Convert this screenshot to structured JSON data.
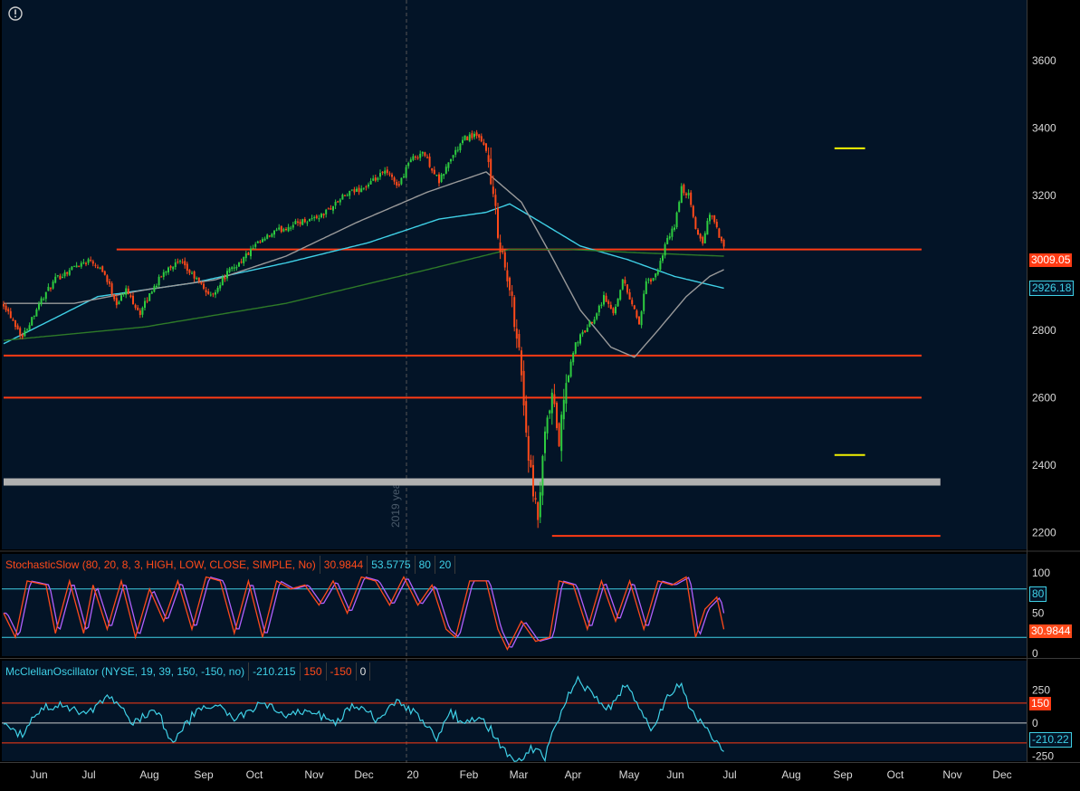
{
  "colors": {
    "background": "#031427",
    "grid_line": "#3a3a3a",
    "axis_text": "#d8d8d8",
    "price_up": "#2ecc40",
    "price_down": "#ff4a1a",
    "support_line": "#ff3b14",
    "ma_cyan": "#3fd0e6",
    "ma_gray": "#9a9a9a",
    "ma_green": "#2e7a28",
    "target_yellow": "#f2f200",
    "band_gray": "#b0b0b0"
  },
  "icons": {
    "info": "info-circle-icon"
  },
  "chart_data": [
    {
      "type": "candlestick",
      "panel": "price",
      "ylim": [
        2150,
        3780
      ],
      "y_ticks": [
        2200,
        2400,
        2600,
        2800,
        3000,
        3200,
        3400,
        3600
      ],
      "x_labels": [
        "Jun",
        "Jul",
        "Aug",
        "Sep",
        "Oct",
        "Nov",
        "Dec",
        "20",
        "Feb",
        "Mar",
        "Apr",
        "May",
        "Jun",
        "Jul",
        "Aug",
        "Sep",
        "Oct",
        "Nov",
        "Dec"
      ],
      "separator_label": "2019 year",
      "price_tags": [
        {
          "value": 3009.05,
          "label": "3009.05",
          "color": "#ff3b14"
        },
        {
          "value": 2926.18,
          "label": "2926.18",
          "color": "#3fd0e6"
        }
      ],
      "closes_anchor_points": [
        [
          0,
          2880
        ],
        [
          8,
          2780
        ],
        [
          15,
          2880
        ],
        [
          22,
          2950
        ],
        [
          30,
          2990
        ],
        [
          37,
          3010
        ],
        [
          42,
          2980
        ],
        [
          48,
          2880
        ],
        [
          52,
          2920
        ],
        [
          58,
          2850
        ],
        [
          63,
          2920
        ],
        [
          70,
          2990
        ],
        [
          75,
          3000
        ],
        [
          82,
          2950
        ],
        [
          88,
          2900
        ],
        [
          95,
          2970
        ],
        [
          100,
          3000
        ],
        [
          107,
          3050
        ],
        [
          115,
          3090
        ],
        [
          125,
          3120
        ],
        [
          135,
          3140
        ],
        [
          145,
          3200
        ],
        [
          155,
          3230
        ],
        [
          162,
          3270
        ],
        [
          168,
          3230
        ],
        [
          172,
          3300
        ],
        [
          178,
          3330
        ],
        [
          182,
          3280
        ],
        [
          185,
          3240
        ],
        [
          190,
          3310
        ],
        [
          196,
          3370
        ],
        [
          200,
          3380
        ],
        [
          205,
          3340
        ],
        [
          207,
          3230
        ],
        [
          210,
          3100
        ],
        [
          213,
          2980
        ],
        [
          216,
          2880
        ],
        [
          219,
          2750
        ],
        [
          222,
          2500
        ],
        [
          225,
          2300
        ],
        [
          227,
          2240
        ],
        [
          230,
          2480
        ],
        [
          233,
          2600
        ],
        [
          236,
          2470
        ],
        [
          239,
          2640
        ],
        [
          243,
          2760
        ],
        [
          247,
          2800
        ],
        [
          251,
          2840
        ],
        [
          255,
          2900
        ],
        [
          259,
          2850
        ],
        [
          263,
          2950
        ],
        [
          267,
          2880
        ],
        [
          270,
          2820
        ],
        [
          273,
          2940
        ],
        [
          277,
          2960
        ],
        [
          281,
          3050
        ],
        [
          285,
          3110
        ],
        [
          288,
          3220
        ],
        [
          291,
          3200
        ],
        [
          294,
          3100
        ],
        [
          297,
          3060
        ],
        [
          300,
          3150
        ],
        [
          303,
          3100
        ],
        [
          306,
          3040
        ]
      ],
      "moving_averages": [
        {
          "name": "cyan",
          "anchor_points": [
            [
              0,
              2760
            ],
            [
              40,
              2900
            ],
            [
              80,
              2940
            ],
            [
              120,
              3000
            ],
            [
              155,
              3060
            ],
            [
              185,
              3130
            ],
            [
              205,
              3150
            ],
            [
              215,
              3175
            ],
            [
              226,
              3130
            ],
            [
              245,
              3050
            ],
            [
              265,
              3010
            ],
            [
              285,
              2960
            ],
            [
              306,
              2925
            ]
          ]
        },
        {
          "name": "gray",
          "anchor_points": [
            [
              0,
              2880
            ],
            [
              30,
              2880
            ],
            [
              60,
              2920
            ],
            [
              90,
              2950
            ],
            [
              120,
              3020
            ],
            [
              150,
              3120
            ],
            [
              180,
              3210
            ],
            [
              205,
              3270
            ],
            [
              220,
              3180
            ],
            [
              232,
              3030
            ],
            [
              245,
              2860
            ],
            [
              258,
              2750
            ],
            [
              268,
              2720
            ],
            [
              278,
              2800
            ],
            [
              290,
              2900
            ],
            [
              300,
              2960
            ],
            [
              306,
              2980
            ]
          ]
        },
        {
          "name": "green",
          "anchor_points": [
            [
              0,
              2770
            ],
            [
              60,
              2810
            ],
            [
              120,
              2880
            ],
            [
              180,
              2980
            ],
            [
              215,
              3040
            ],
            [
              240,
              3040
            ],
            [
              270,
              3030
            ],
            [
              306,
              3020
            ]
          ]
        }
      ],
      "horizontal_levels": [
        {
          "value": 3040,
          "from_day": 48,
          "to_day": 390,
          "color": "#ff3b14"
        },
        {
          "value": 2725,
          "from_day": 0,
          "to_day": 390,
          "color": "#ff3b14"
        },
        {
          "value": 2600,
          "from_day": 0,
          "to_day": 390,
          "color": "#ff3b14"
        },
        {
          "value": 2190,
          "from_day": 233,
          "to_day": 398,
          "color": "#ff3b14"
        },
        {
          "value": 2350,
          "from_day": 0,
          "to_day": 398,
          "color": "#b0b0b0",
          "band": true
        },
        {
          "value": 3340,
          "from_day": 353,
          "to_day": 366,
          "color": "#f2f200"
        },
        {
          "value": 2430,
          "from_day": 353,
          "to_day": 366,
          "color": "#f2f200"
        }
      ]
    },
    {
      "type": "line",
      "panel": "stochastic",
      "ylim": [
        0,
        100
      ],
      "y_ticks": [
        0,
        50,
        100
      ],
      "levels": [
        80,
        20
      ],
      "anchor_points": [
        [
          0,
          50
        ],
        [
          5,
          20
        ],
        [
          10,
          90
        ],
        [
          18,
          85
        ],
        [
          22,
          25
        ],
        [
          28,
          90
        ],
        [
          34,
          25
        ],
        [
          38,
          85
        ],
        [
          44,
          30
        ],
        [
          50,
          90
        ],
        [
          56,
          20
        ],
        [
          62,
          80
        ],
        [
          68,
          40
        ],
        [
          74,
          90
        ],
        [
          80,
          30
        ],
        [
          86,
          95
        ],
        [
          92,
          90
        ],
        [
          98,
          25
        ],
        [
          104,
          90
        ],
        [
          110,
          20
        ],
        [
          116,
          90
        ],
        [
          122,
          80
        ],
        [
          128,
          85
        ],
        [
          134,
          60
        ],
        [
          140,
          90
        ],
        [
          146,
          50
        ],
        [
          152,
          95
        ],
        [
          158,
          90
        ],
        [
          164,
          60
        ],
        [
          170,
          95
        ],
        [
          176,
          60
        ],
        [
          182,
          85
        ],
        [
          188,
          30
        ],
        [
          192,
          20
        ],
        [
          198,
          90
        ],
        [
          205,
          90
        ],
        [
          210,
          30
        ],
        [
          214,
          5
        ],
        [
          220,
          40
        ],
        [
          226,
          15
        ],
        [
          232,
          20
        ],
        [
          236,
          90
        ],
        [
          242,
          85
        ],
        [
          248,
          30
        ],
        [
          254,
          90
        ],
        [
          260,
          40
        ],
        [
          266,
          90
        ],
        [
          272,
          30
        ],
        [
          278,
          90
        ],
        [
          284,
          85
        ],
        [
          290,
          95
        ],
        [
          294,
          20
        ],
        [
          298,
          55
        ],
        [
          303,
          70
        ],
        [
          306,
          30
        ]
      ]
    },
    {
      "type": "line",
      "panel": "mcclellan",
      "ylim": [
        -280,
        320
      ],
      "y_ticks": [
        250,
        0,
        -250
      ],
      "levels": [
        150,
        -150
      ],
      "zero_line": 0,
      "anchor_points": [
        [
          0,
          0
        ],
        [
          8,
          -100
        ],
        [
          15,
          100
        ],
        [
          25,
          150
        ],
        [
          35,
          50
        ],
        [
          45,
          200
        ],
        [
          55,
          0
        ],
        [
          65,
          100
        ],
        [
          72,
          -150
        ],
        [
          80,
          50
        ],
        [
          90,
          150
        ],
        [
          98,
          20
        ],
        [
          110,
          150
        ],
        [
          120,
          50
        ],
        [
          130,
          100
        ],
        [
          140,
          0
        ],
        [
          150,
          150
        ],
        [
          158,
          30
        ],
        [
          168,
          170
        ],
        [
          176,
          50
        ],
        [
          184,
          -120
        ],
        [
          190,
          80
        ],
        [
          196,
          0
        ],
        [
          204,
          30
        ],
        [
          212,
          -200
        ],
        [
          218,
          -280
        ],
        [
          224,
          -200
        ],
        [
          230,
          -250
        ],
        [
          238,
          150
        ],
        [
          244,
          350
        ],
        [
          250,
          200
        ],
        [
          258,
          100
        ],
        [
          264,
          300
        ],
        [
          270,
          100
        ],
        [
          276,
          -50
        ],
        [
          282,
          200
        ],
        [
          288,
          300
        ],
        [
          292,
          100
        ],
        [
          298,
          -50
        ],
        [
          306,
          -210
        ]
      ]
    }
  ],
  "stochastic_legend": {
    "name": "StochasticSlow (80, 20, 8, 3, HIGH, LOW, CLOSE, SIMPLE, No)",
    "value_k": "30.9844",
    "value_d": "53.5775",
    "level_high": "80",
    "level_low": "20",
    "tags": {
      "level": "80",
      "current": "30.9844"
    }
  },
  "mcclellan_legend": {
    "name": "McClellanOscillator (NYSE, 19, 39, 150, -150, no)",
    "value": "-210.215",
    "upper": "150",
    "lower": "-150",
    "zero": "0",
    "tags": {
      "upper": "150",
      "current": "-210.22"
    }
  }
}
